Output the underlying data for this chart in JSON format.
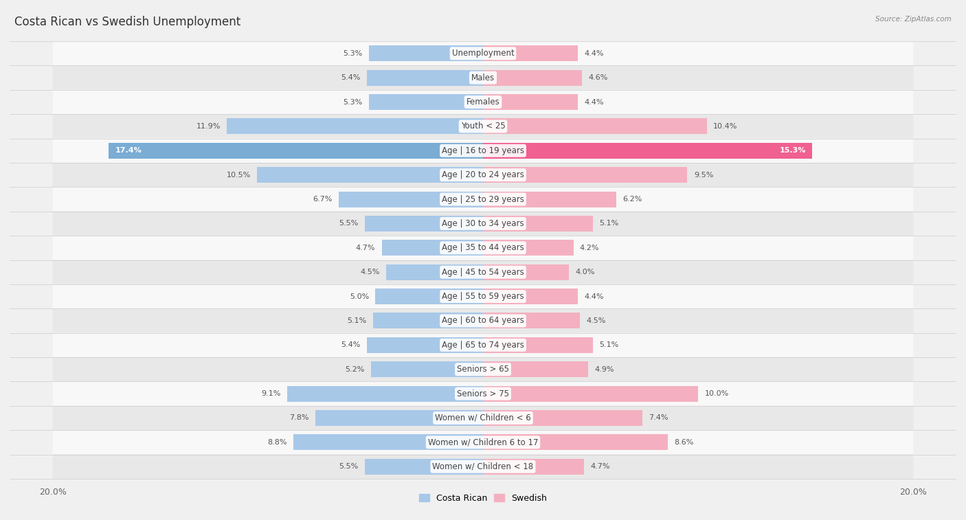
{
  "title": "Costa Rican vs Swedish Unemployment",
  "source": "Source: ZipAtlas.com",
  "categories": [
    "Unemployment",
    "Males",
    "Females",
    "Youth < 25",
    "Age | 16 to 19 years",
    "Age | 20 to 24 years",
    "Age | 25 to 29 years",
    "Age | 30 to 34 years",
    "Age | 35 to 44 years",
    "Age | 45 to 54 years",
    "Age | 55 to 59 years",
    "Age | 60 to 64 years",
    "Age | 65 to 74 years",
    "Seniors > 65",
    "Seniors > 75",
    "Women w/ Children < 6",
    "Women w/ Children 6 to 17",
    "Women w/ Children < 18"
  ],
  "costa_rican": [
    5.3,
    5.4,
    5.3,
    11.9,
    17.4,
    10.5,
    6.7,
    5.5,
    4.7,
    4.5,
    5.0,
    5.1,
    5.4,
    5.2,
    9.1,
    7.8,
    8.8,
    5.5
  ],
  "swedish": [
    4.4,
    4.6,
    4.4,
    10.4,
    15.3,
    9.5,
    6.2,
    5.1,
    4.2,
    4.0,
    4.4,
    4.5,
    5.1,
    4.9,
    10.0,
    7.4,
    8.6,
    4.7
  ],
  "cr_color_normal": "#a8c8e8",
  "cr_color_highlight": "#7aacd4",
  "sw_color_normal": "#f4b0c0",
  "sw_color_highlight": "#f06090",
  "bar_height": 0.65,
  "max_val": 20.0,
  "background_color": "#f0f0f0",
  "row_light_color": "#f8f8f8",
  "row_dark_color": "#e8e8e8",
  "label_fontsize": 8.5,
  "title_fontsize": 12,
  "value_fontsize": 8.0,
  "highlight_rows": [
    4
  ]
}
